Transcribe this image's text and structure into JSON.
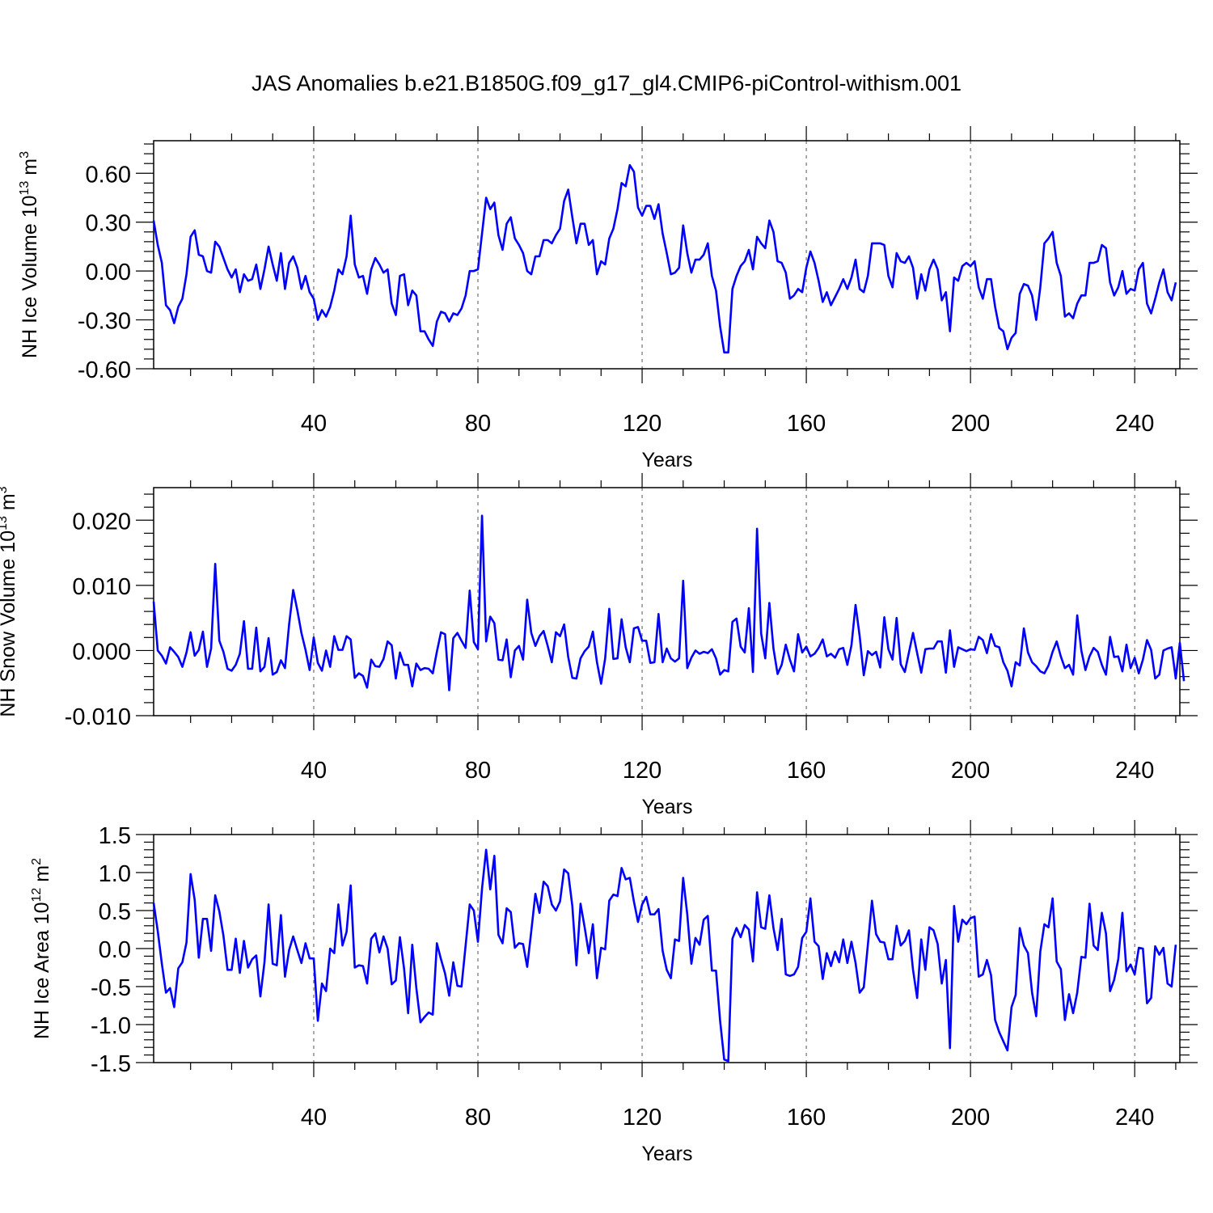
{
  "figure_title": "JAS Anomalies b.e21.B1850G.f09_g17_gl4.CMIP6-piControl-withism.001",
  "line_color": "#0000ff",
  "chart_data": [
    {
      "type": "line",
      "id": "ice-volume",
      "ylabel": {
        "main": "NH Ice Volume 10",
        "sup": "13",
        "unit": " m",
        "unit_sup": "3"
      },
      "xlabel": "Years",
      "xlim": [
        1,
        251
      ],
      "ylim": [
        -0.6,
        0.8
      ],
      "xticks": [
        40,
        80,
        120,
        160,
        200,
        240
      ],
      "xtick_labels": [
        "40",
        "80",
        "120",
        "160",
        "200",
        "240"
      ],
      "yticks": [
        -0.6,
        -0.3,
        0.0,
        0.3,
        0.6
      ],
      "ytick_labels": [
        "-0.60",
        "-0.30",
        "0.00",
        "0.30",
        "0.60"
      ],
      "series": [
        {
          "name": "NH Ice Volume",
          "x_start": 1,
          "values": [
            0.31,
            0.16,
            0.05,
            -0.21,
            -0.24,
            -0.32,
            -0.22,
            -0.17,
            -0.02,
            0.21,
            0.25,
            0.1,
            0.09,
            0.0,
            -0.01,
            0.18,
            0.15,
            0.08,
            0.01,
            -0.04,
            0.01,
            -0.13,
            -0.02,
            -0.06,
            -0.05,
            0.04,
            -0.11,
            0.01,
            0.15,
            0.04,
            -0.06,
            0.11,
            -0.11,
            0.05,
            0.09,
            0.02,
            -0.11,
            -0.03,
            -0.13,
            -0.17,
            -0.3,
            -0.24,
            -0.28,
            -0.22,
            -0.12,
            0.01,
            -0.02,
            0.09,
            0.34,
            0.04,
            -0.04,
            -0.03,
            -0.14,
            0.01,
            0.08,
            0.04,
            -0.01,
            0.01,
            -0.2,
            -0.27,
            -0.03,
            -0.02,
            -0.21,
            -0.12,
            -0.15,
            -0.37,
            -0.37,
            -0.42,
            -0.46,
            -0.31,
            -0.25,
            -0.26,
            -0.31,
            -0.26,
            -0.27,
            -0.23,
            -0.15,
            0.0,
            0.0,
            0.01,
            0.23,
            0.45,
            0.38,
            0.42,
            0.22,
            0.13,
            0.29,
            0.33,
            0.2,
            0.16,
            0.11,
            0.0,
            -0.02,
            0.09,
            0.09,
            0.19,
            0.19,
            0.17,
            0.22,
            0.26,
            0.43,
            0.5,
            0.33,
            0.17,
            0.29,
            0.29,
            0.16,
            0.19,
            -0.02,
            0.06,
            0.04,
            0.2,
            0.26,
            0.38,
            0.54,
            0.52,
            0.65,
            0.61,
            0.39,
            0.34,
            0.4,
            0.4,
            0.32,
            0.41,
            0.23,
            0.11,
            -0.02,
            -0.01,
            0.02,
            0.28,
            0.11,
            -0.01,
            0.07,
            0.07,
            0.1,
            0.17,
            -0.03,
            -0.12,
            -0.34,
            -0.5,
            -0.5,
            -0.11,
            -0.03,
            0.03,
            0.06,
            0.13,
            0.01,
            0.21,
            0.17,
            0.14,
            0.31,
            0.24,
            0.06,
            0.05,
            -0.01,
            -0.17,
            -0.15,
            -0.11,
            -0.13,
            0.02,
            0.12,
            0.05,
            -0.06,
            -0.19,
            -0.13,
            -0.21,
            -0.16,
            -0.11,
            -0.05,
            -0.11,
            -0.04,
            0.07,
            -0.11,
            -0.13,
            -0.03,
            0.17,
            0.17,
            0.17,
            0.16,
            -0.03,
            -0.1,
            0.11,
            0.06,
            0.05,
            0.09,
            0.02,
            -0.17,
            -0.02,
            -0.12,
            0.01,
            0.07,
            0.01,
            -0.18,
            -0.13,
            -0.37,
            -0.04,
            -0.06,
            0.03,
            0.05,
            0.03,
            0.06,
            -0.1,
            -0.17,
            -0.05,
            -0.05,
            -0.22,
            -0.35,
            -0.37,
            -0.48,
            -0.41,
            -0.38,
            -0.14,
            -0.08,
            -0.09,
            -0.15,
            -0.3,
            -0.1,
            0.17,
            0.2,
            0.24,
            0.05,
            -0.03,
            -0.28,
            -0.26,
            -0.29,
            -0.2,
            -0.15,
            -0.15,
            0.05,
            0.05,
            0.06,
            0.16,
            0.14,
            -0.07,
            -0.15,
            -0.1,
            0.0,
            -0.14,
            -0.11,
            -0.12,
            0.01,
            0.05,
            -0.2,
            -0.26,
            -0.17,
            -0.07,
            0.01,
            -0.13,
            -0.18,
            -0.07
          ]
        }
      ]
    },
    {
      "type": "line",
      "id": "snow-volume",
      "ylabel": {
        "main": "NH Snow Volume 10",
        "sup": "13",
        "unit": " m",
        "unit_sup": "3"
      },
      "xlabel": "Years",
      "xlim": [
        1,
        251
      ],
      "ylim": [
        -0.01,
        0.025
      ],
      "xticks": [
        40,
        80,
        120,
        160,
        200,
        240
      ],
      "xtick_labels": [
        "40",
        "80",
        "120",
        "160",
        "200",
        "240"
      ],
      "yticks": [
        -0.01,
        0.0,
        0.01,
        0.02
      ],
      "ytick_labels": [
        "-0.010",
        "0.000",
        "0.010",
        "0.020"
      ],
      "series": [
        {
          "name": "NH Snow Volume",
          "x_start": 1,
          "values": [
            0.0075,
            0.0,
            -0.0008,
            -0.002,
            0.0005,
            -0.0002,
            -0.001,
            -0.0025,
            -0.0003,
            0.0028,
            -0.0008,
            0.0001,
            0.0029,
            -0.0025,
            0.0003,
            0.0133,
            0.0015,
            -0.0002,
            -0.0028,
            -0.0031,
            -0.0022,
            -0.0005,
            0.0045,
            -0.0028,
            -0.0028,
            0.0035,
            -0.0032,
            -0.0025,
            0.0019,
            -0.0037,
            -0.0033,
            -0.0015,
            -0.0027,
            0.004,
            0.0093,
            0.0062,
            0.0027,
            0.0001,
            -0.003,
            0.002,
            -0.0019,
            -0.0031,
            0.0,
            -0.0025,
            0.0022,
            0.0001,
            0.0001,
            0.0022,
            0.0017,
            -0.0042,
            -0.0035,
            -0.0039,
            -0.0057,
            -0.0014,
            -0.0024,
            -0.0025,
            -0.0013,
            0.0014,
            0.0008,
            -0.0043,
            -0.0003,
            -0.0022,
            -0.0022,
            -0.0055,
            -0.002,
            -0.003,
            -0.0027,
            -0.0028,
            -0.0035,
            -0.0002,
            0.0028,
            0.0025,
            -0.0061,
            0.0019,
            0.0027,
            0.0015,
            0.0004,
            0.0092,
            0.0013,
            0.0002,
            0.0207,
            0.0014,
            0.0052,
            0.0042,
            -0.0014,
            -0.0015,
            0.0017,
            -0.0041,
            0.0,
            0.0007,
            -0.0014,
            0.0078,
            0.0027,
            0.0007,
            0.0022,
            0.003,
            0.0007,
            -0.0018,
            0.0028,
            0.0022,
            0.004,
            -0.001,
            -0.0042,
            -0.0043,
            -0.0012,
            -0.0001,
            0.0006,
            0.0029,
            -0.0018,
            -0.0051,
            -0.0012,
            0.0064,
            -0.0013,
            -0.0012,
            0.0048,
            0.0005,
            -0.0018,
            0.0034,
            0.0036,
            0.0015,
            0.0015,
            -0.0019,
            -0.0018,
            0.0056,
            -0.0018,
            0.0003,
            -0.0012,
            -0.0017,
            -0.0012,
            0.0107,
            -0.0027,
            -0.0011,
            0.0,
            -0.0005,
            -0.0002,
            -0.0004,
            0.0002,
            -0.0012,
            -0.0037,
            -0.003,
            -0.0032,
            0.0044,
            0.0049,
            0.0006,
            -0.0003,
            0.0065,
            -0.0033,
            0.0187,
            0.0026,
            -0.0012,
            0.0073,
            0.0003,
            -0.0036,
            -0.0022,
            0.0009,
            -0.0014,
            -0.0032,
            0.0025,
            -0.0003,
            0.0006,
            -0.0009,
            -0.0005,
            0.0004,
            0.0017,
            -0.0009,
            -0.0005,
            -0.0011,
            0.0002,
            0.0004,
            -0.0022,
            0.0008,
            0.007,
            0.0022,
            -0.0038,
            -0.0001,
            -0.0007,
            -0.0002,
            -0.0026,
            0.0051,
            0.0002,
            -0.0014,
            0.005,
            -0.0021,
            -0.0033,
            -0.0003,
            0.0027,
            -0.0004,
            -0.0034,
            0.0002,
            0.0003,
            0.0003,
            0.0014,
            0.0014,
            -0.0034,
            0.0031,
            -0.0025,
            0.0005,
            0.0002,
            -0.0001,
            0.0002,
            0.0001,
            0.0021,
            0.0016,
            -0.0004,
            0.0025,
            0.0007,
            0.0005,
            -0.0018,
            -0.0031,
            -0.0055,
            -0.0018,
            -0.0023,
            0.0034,
            -0.0003,
            -0.0018,
            -0.0024,
            -0.0032,
            -0.0035,
            -0.0023,
            -0.0002,
            0.0014,
            -0.0009,
            -0.0027,
            -0.0022,
            -0.0037,
            0.0054,
            0.0,
            -0.003,
            -0.0009,
            0.0004,
            -0.0002,
            -0.0022,
            -0.0037,
            0.0021,
            -0.001,
            -0.0009,
            -0.0032,
            0.0009,
            -0.0027,
            -0.0011,
            -0.0035,
            -0.0014,
            0.0016,
            0.0001,
            -0.0043,
            -0.0037,
            0.0,
            0.0003,
            0.0005,
            -0.0043,
            0.0012,
            -0.0047
          ]
        }
      ]
    },
    {
      "type": "line",
      "id": "ice-area",
      "ylabel": {
        "main": "NH Ice Area 10",
        "sup": "12",
        "unit": " m",
        "unit_sup": "2"
      },
      "xlabel": "Years",
      "xlim": [
        1,
        251
      ],
      "ylim": [
        -1.5,
        1.5
      ],
      "xticks": [
        40,
        80,
        120,
        160,
        200,
        240
      ],
      "xtick_labels": [
        "40",
        "80",
        "120",
        "160",
        "200",
        "240"
      ],
      "yticks": [
        -1.5,
        -1.0,
        -0.5,
        0.0,
        0.5,
        1.0,
        1.5
      ],
      "ytick_labels": [
        "-1.5",
        "-1.0",
        "-0.5",
        "0.0",
        "0.5",
        "1.0",
        "1.5"
      ],
      "series": [
        {
          "name": "NH Ice Area",
          "x_start": 1,
          "values": [
            0.6,
            0.23,
            -0.2,
            -0.58,
            -0.52,
            -0.77,
            -0.26,
            -0.18,
            0.08,
            0.98,
            0.64,
            -0.12,
            0.39,
            0.39,
            -0.03,
            0.7,
            0.49,
            0.17,
            -0.28,
            -0.28,
            0.13,
            -0.32,
            0.1,
            -0.25,
            -0.14,
            -0.09,
            -0.63,
            -0.18,
            0.58,
            -0.2,
            -0.22,
            0.44,
            -0.37,
            -0.02,
            0.16,
            -0.02,
            -0.19,
            0.07,
            -0.13,
            -0.13,
            -0.95,
            -0.46,
            -0.56,
            0.0,
            -0.06,
            0.58,
            0.04,
            0.22,
            0.83,
            -0.25,
            -0.22,
            -0.23,
            -0.46,
            0.13,
            0.2,
            -0.05,
            0.16,
            0.0,
            -0.47,
            -0.42,
            0.15,
            -0.26,
            -0.85,
            0.05,
            -0.52,
            -0.97,
            -0.9,
            -0.84,
            -0.87,
            0.07,
            -0.14,
            -0.33,
            -0.62,
            -0.18,
            -0.49,
            -0.5,
            0.04,
            0.58,
            0.5,
            0.09,
            0.79,
            1.3,
            0.78,
            1.22,
            0.18,
            0.07,
            0.53,
            0.48,
            0.01,
            0.07,
            0.06,
            -0.24,
            0.23,
            0.72,
            0.47,
            0.88,
            0.82,
            0.58,
            0.5,
            0.62,
            1.04,
            0.99,
            0.56,
            -0.22,
            0.59,
            0.28,
            -0.06,
            0.32,
            -0.39,
            0.01,
            -0.01,
            0.63,
            0.71,
            0.69,
            1.06,
            0.91,
            0.93,
            0.62,
            0.35,
            0.58,
            0.68,
            0.45,
            0.45,
            0.52,
            -0.03,
            -0.28,
            -0.39,
            0.12,
            0.1,
            0.93,
            0.45,
            -0.2,
            0.14,
            0.05,
            0.38,
            0.43,
            -0.29,
            -0.29,
            -0.95,
            -1.46,
            -1.48,
            0.13,
            0.27,
            0.15,
            0.31,
            0.25,
            -0.17,
            0.74,
            0.28,
            0.26,
            0.7,
            0.27,
            -0.02,
            0.39,
            -0.34,
            -0.36,
            -0.34,
            -0.24,
            0.14,
            0.22,
            0.66,
            0.09,
            0.03,
            -0.4,
            -0.06,
            -0.23,
            -0.04,
            -0.18,
            0.12,
            -0.19,
            0.09,
            -0.19,
            -0.58,
            -0.51,
            0.05,
            0.63,
            0.19,
            0.09,
            0.08,
            -0.14,
            -0.14,
            0.3,
            0.04,
            0.1,
            0.24,
            -0.28,
            -0.65,
            0.12,
            -0.28,
            0.28,
            0.24,
            0.06,
            -0.46,
            -0.15,
            -1.31,
            0.56,
            0.09,
            0.38,
            0.32,
            0.4,
            0.42,
            -0.37,
            -0.34,
            -0.15,
            -0.35,
            -0.94,
            -1.1,
            -1.22,
            -1.34,
            -0.77,
            -0.61,
            0.27,
            0.04,
            -0.06,
            -0.58,
            -0.89,
            -0.04,
            0.32,
            0.28,
            0.66,
            -0.17,
            -0.27,
            -0.94,
            -0.6,
            -0.85,
            -0.58,
            -0.11,
            -0.12,
            0.59,
            0.04,
            -0.02,
            0.47,
            0.2,
            -0.56,
            -0.41,
            -0.14,
            0.47,
            -0.3,
            -0.21,
            -0.34,
            0.01,
            0.0,
            -0.72,
            -0.65,
            0.03,
            -0.08,
            0.01,
            -0.46,
            -0.5,
            0.05
          ]
        }
      ]
    }
  ]
}
